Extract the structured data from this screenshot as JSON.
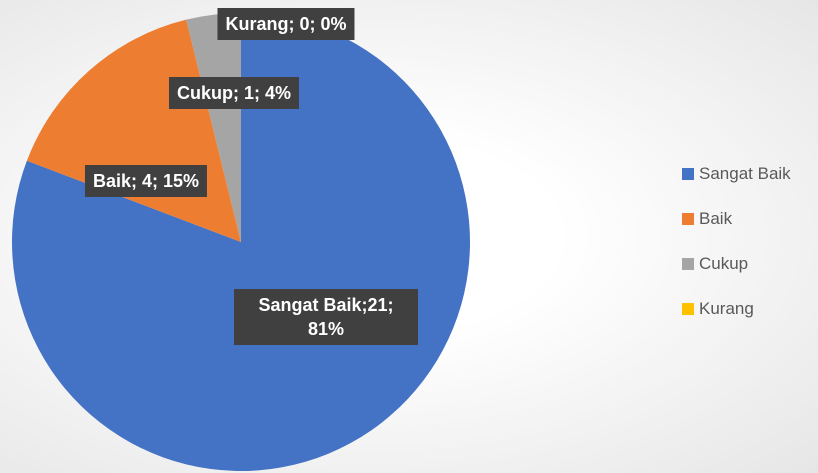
{
  "chart_data": {
    "type": "pie",
    "categories": [
      "Sangat Baik",
      "Baik",
      "Cukup",
      "Kurang"
    ],
    "values": [
      21,
      4,
      1,
      0
    ],
    "value_labels": [
      "Sangat Baik;21; 81%",
      "Baik; 4; 15%",
      "Cukup; 1; 4%",
      "Kurang; 0; 0%"
    ],
    "colors": [
      "#4472c4",
      "#ed7d31",
      "#a5a5a5",
      "#ffc000"
    ],
    "legend": "right"
  }
}
